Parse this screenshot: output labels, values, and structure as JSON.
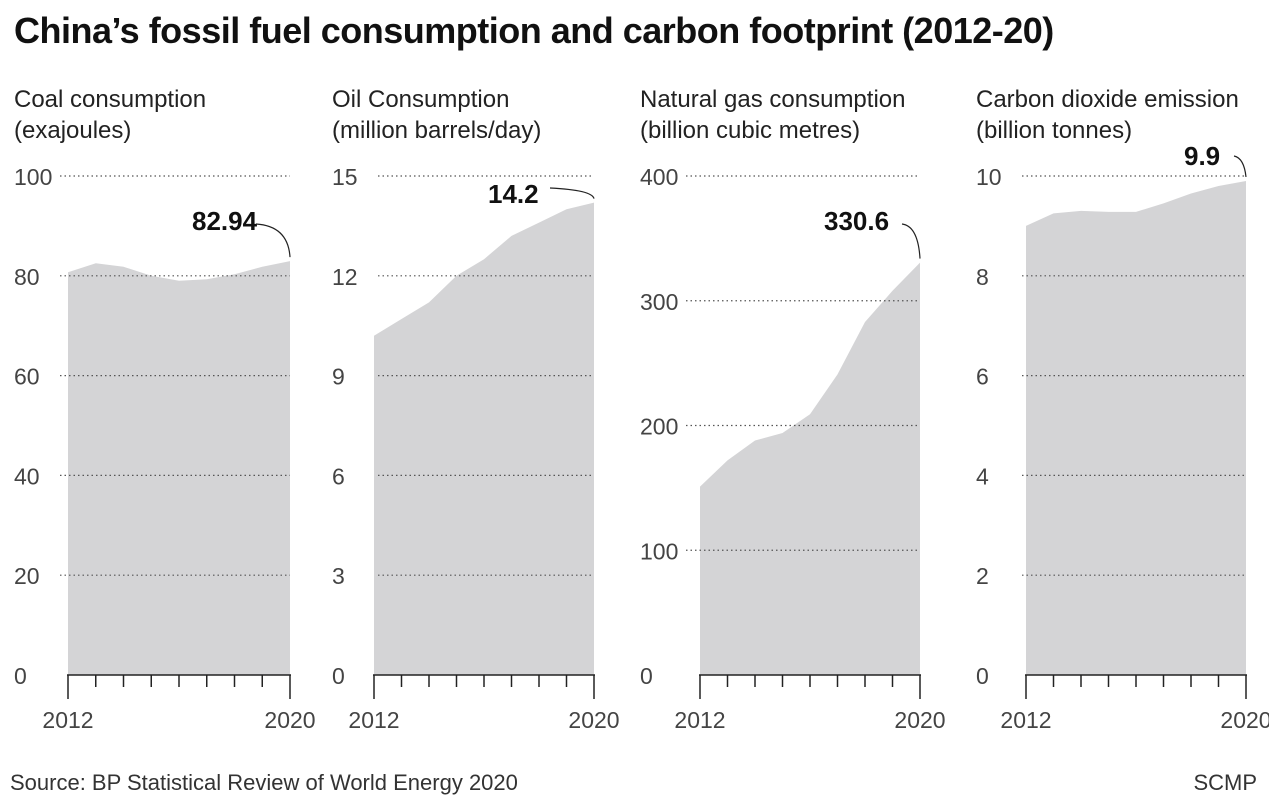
{
  "title": "China’s fossil fuel consumption and carbon footprint (2012-20)",
  "source": "Source: BP Statistical Review of World Energy 2020",
  "credit": "SCMP",
  "colors": {
    "area": "#d4d4d6",
    "grid": "#555555",
    "text": "#222222"
  },
  "chart_data": [
    {
      "type": "area",
      "label_line1": "Coal consumption",
      "label_line2": "(exajoules)",
      "x": [
        2012,
        2013,
        2014,
        2015,
        2016,
        2017,
        2018,
        2019,
        2020
      ],
      "values": [
        80.7,
        82.5,
        81.8,
        80.0,
        79.0,
        79.3,
        80.3,
        81.8,
        82.94
      ],
      "ylim": [
        0,
        100
      ],
      "yticks": [
        0,
        20,
        40,
        60,
        80,
        100
      ],
      "xtick_labels": [
        "2012",
        "2020"
      ],
      "annotation": "82.94",
      "grid": "dotted horizontal"
    },
    {
      "type": "area",
      "label_line1": "Oil Consumption",
      "label_line2": "(million barrels/day)",
      "x": [
        2012,
        2013,
        2014,
        2015,
        2016,
        2017,
        2018,
        2019,
        2020
      ],
      "values": [
        10.2,
        10.7,
        11.2,
        12.0,
        12.5,
        13.2,
        13.6,
        14.0,
        14.2
      ],
      "ylim": [
        0,
        15
      ],
      "yticks": [
        0,
        3,
        6,
        9,
        12,
        15
      ],
      "xtick_labels": [
        "2012",
        "2020"
      ],
      "annotation": "14.2",
      "grid": "dotted horizontal"
    },
    {
      "type": "area",
      "label_line1": "Natural gas consumption",
      "label_line2": "(billion cubic metres)",
      "x": [
        2012,
        2013,
        2014,
        2015,
        2016,
        2017,
        2018,
        2019,
        2020
      ],
      "values": [
        151,
        172,
        188,
        194,
        209,
        241,
        283,
        308,
        330.6
      ],
      "ylim": [
        0,
        400
      ],
      "yticks": [
        0,
        100,
        200,
        300,
        400
      ],
      "xtick_labels": [
        "2012",
        "2020"
      ],
      "annotation": "330.6",
      "grid": "dotted horizontal"
    },
    {
      "type": "area",
      "label_line1": "Carbon dioxide emission",
      "label_line2": "(billion tonnes)",
      "x": [
        2012,
        2013,
        2014,
        2015,
        2016,
        2017,
        2018,
        2019,
        2020
      ],
      "values": [
        9.0,
        9.25,
        9.3,
        9.28,
        9.28,
        9.45,
        9.65,
        9.8,
        9.9
      ],
      "ylim": [
        0,
        10
      ],
      "yticks": [
        0,
        2,
        4,
        6,
        8,
        10
      ],
      "xtick_labels": [
        "2012",
        "2020"
      ],
      "annotation": "9.9",
      "grid": "dotted horizontal"
    }
  ]
}
